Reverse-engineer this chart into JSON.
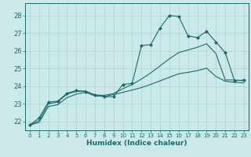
{
  "xlabel": "Humidex (Indice chaleur)",
  "bg_color": "#cce9e9",
  "grid_color": "#aad4d4",
  "line_color": "#1a6b6b",
  "xlim": [
    -0.5,
    23.5
  ],
  "ylim": [
    21.5,
    28.7
  ],
  "yticks": [
    22,
    23,
    24,
    25,
    26,
    27,
    28
  ],
  "xticks": [
    0,
    1,
    2,
    3,
    4,
    5,
    6,
    7,
    8,
    9,
    10,
    11,
    12,
    13,
    14,
    15,
    16,
    17,
    18,
    19,
    20,
    21,
    22,
    23
  ],
  "series": [
    {
      "x": [
        0,
        1,
        2,
        3,
        4,
        5,
        6,
        7,
        8,
        9,
        10,
        11,
        12,
        13,
        14,
        15,
        16,
        17,
        18,
        19,
        20,
        21,
        22,
        23
      ],
      "y": [
        21.8,
        22.2,
        23.1,
        23.15,
        23.6,
        23.75,
        23.7,
        23.5,
        23.4,
        23.4,
        24.1,
        24.15,
        26.3,
        26.35,
        27.3,
        28.0,
        27.95,
        26.85,
        26.75,
        27.1,
        26.5,
        25.9,
        24.3,
        24.35
      ],
      "markers": true
    },
    {
      "x": [
        0,
        1,
        2,
        3,
        4,
        5,
        6,
        7,
        8,
        9,
        10,
        11,
        12,
        13,
        14,
        15,
        16,
        17,
        18,
        19,
        20,
        21,
        22,
        23
      ],
      "y": [
        21.8,
        22.05,
        23.0,
        23.1,
        23.55,
        23.7,
        23.72,
        23.5,
        23.48,
        23.58,
        23.85,
        24.1,
        24.4,
        24.75,
        25.15,
        25.55,
        25.9,
        26.05,
        26.2,
        26.4,
        25.85,
        24.35,
        24.35,
        24.3
      ],
      "markers": false
    },
    {
      "x": [
        0,
        1,
        2,
        3,
        4,
        5,
        6,
        7,
        8,
        9,
        10,
        11,
        12,
        13,
        14,
        15,
        16,
        17,
        18,
        19,
        20,
        21,
        22,
        23
      ],
      "y": [
        21.8,
        21.95,
        22.85,
        22.95,
        23.35,
        23.55,
        23.65,
        23.45,
        23.42,
        23.52,
        23.65,
        23.78,
        23.92,
        24.1,
        24.3,
        24.5,
        24.7,
        24.78,
        24.88,
        25.02,
        24.55,
        24.28,
        24.22,
        24.18
      ],
      "markers": false
    }
  ]
}
